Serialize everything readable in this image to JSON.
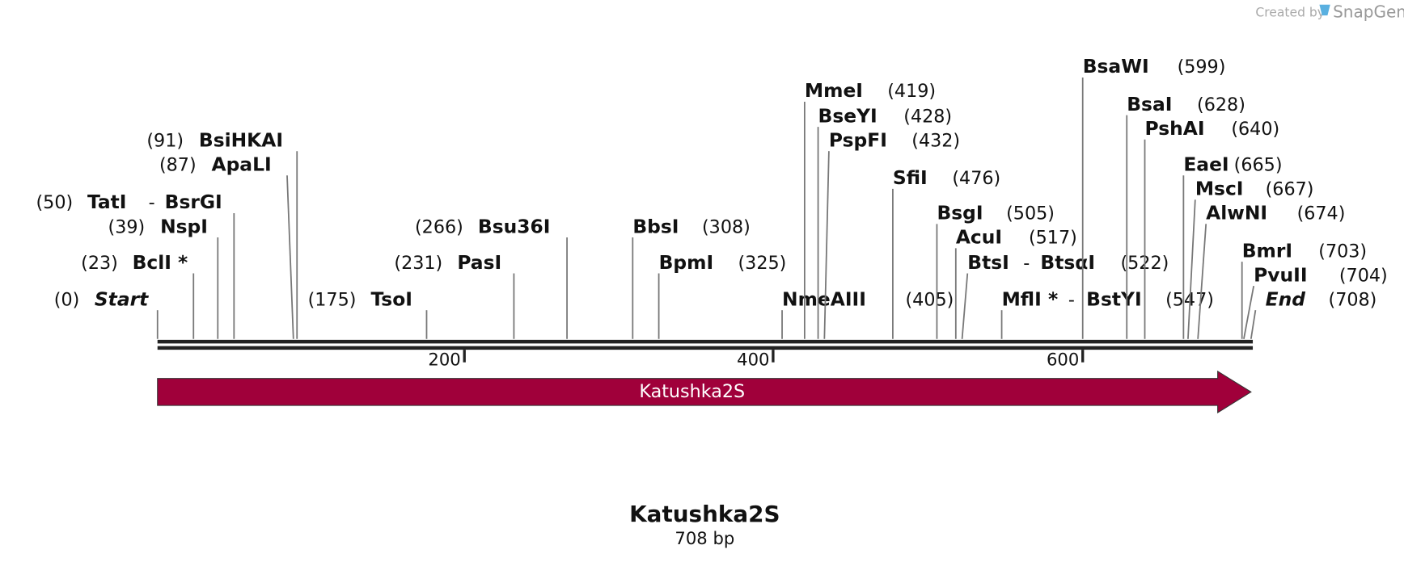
{
  "header": {
    "created_by": "Created by",
    "brand": "SnapGene"
  },
  "separator": "-",
  "sites": [
    {
      "position": "(0)",
      "name": "Start"
    },
    {
      "position": "(23)",
      "name": "BclI *"
    },
    {
      "position": "(39)",
      "name": "NspI"
    },
    {
      "position": "(50)",
      "name": "TatI",
      "partner": "BsrGI"
    },
    {
      "position": "(87)",
      "name": "ApaLI"
    },
    {
      "position": "(91)",
      "name": "BsiHKAI"
    },
    {
      "position": "(175)",
      "name": "TsoI"
    },
    {
      "position": "(231)",
      "name": "PasI"
    },
    {
      "position": "(266)",
      "name": "Bsu36I"
    },
    {
      "position": "(308)",
      "name": "BbsI"
    },
    {
      "position": "(325)",
      "name": "BpmI"
    },
    {
      "position": "(405)",
      "name": "NmeAIII"
    },
    {
      "position": "(419)",
      "name": "MmeI"
    },
    {
      "position": "(428)",
      "name": "BseYI"
    },
    {
      "position": "(432)",
      "name": "PspFI"
    },
    {
      "position": "(476)",
      "name": "SfiI"
    },
    {
      "position": "(505)",
      "name": "BsgI"
    },
    {
      "position": "(517)",
      "name": "AcuI"
    },
    {
      "position": "(522)",
      "name": "BtsI",
      "partner": "BtsαI"
    },
    {
      "position": "(547)",
      "name": "MflI *",
      "partner": "BstYI"
    },
    {
      "position": "(599)",
      "name": "BsaWI"
    },
    {
      "position": "(628)",
      "name": "BsaI"
    },
    {
      "position": "(640)",
      "name": "PshAI"
    },
    {
      "position": "(665)",
      "name": "EaeI"
    },
    {
      "position": "(667)",
      "name": "MscI"
    },
    {
      "position": "(674)",
      "name": "AlwNI"
    },
    {
      "position": "(703)",
      "name": "BmrI"
    },
    {
      "position": "(704)",
      "name": "PvuII"
    },
    {
      "position": "(708)",
      "name": "End"
    }
  ],
  "ruler": {
    "ticks": [
      "200",
      "400",
      "600"
    ]
  },
  "feature": {
    "label": "Katushka2S"
  },
  "title": "Katushka2S",
  "subtitle": "708 bp"
}
